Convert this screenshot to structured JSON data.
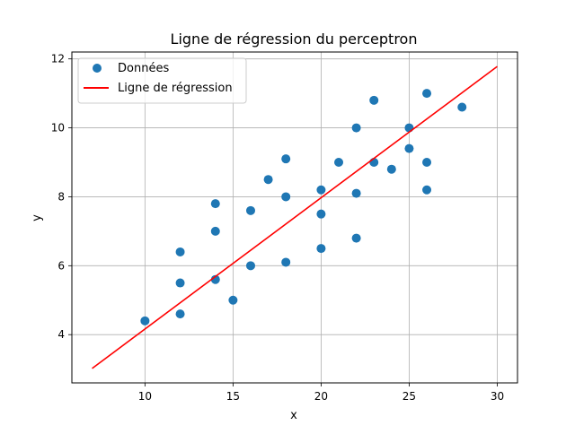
{
  "chart_data": {
    "type": "scatter",
    "title": "Ligne de régression du perceptron",
    "xlabel": "x",
    "ylabel": "y",
    "xlim": [
      5.85,
      31.15
    ],
    "ylim": [
      2.6,
      12.2
    ],
    "xticks": [
      10,
      15,
      20,
      25,
      30
    ],
    "yticks": [
      4,
      6,
      8,
      10,
      12
    ],
    "grid": true,
    "legend": {
      "placement": "top-left",
      "entries": [
        "Données",
        "Ligne de régression"
      ]
    },
    "series": [
      {
        "name": "Données",
        "kind": "scatter",
        "color": "#1f77b4",
        "points": [
          [
            10,
            4.4
          ],
          [
            12,
            4.6
          ],
          [
            12,
            5.5
          ],
          [
            12,
            6.4
          ],
          [
            14,
            5.6
          ],
          [
            14,
            7.0
          ],
          [
            14,
            7.8
          ],
          [
            15,
            5.0
          ],
          [
            16,
            6.0
          ],
          [
            16,
            7.6
          ],
          [
            17,
            8.5
          ],
          [
            18,
            6.1
          ],
          [
            18,
            8.0
          ],
          [
            18,
            9.1
          ],
          [
            20,
            6.5
          ],
          [
            20,
            7.5
          ],
          [
            20,
            8.2
          ],
          [
            21,
            9.0
          ],
          [
            22,
            6.8
          ],
          [
            22,
            8.1
          ],
          [
            22,
            10.0
          ],
          [
            23,
            9.0
          ],
          [
            23,
            10.8
          ],
          [
            24,
            8.8
          ],
          [
            25,
            9.4
          ],
          [
            25,
            10.0
          ],
          [
            26,
            8.2
          ],
          [
            26,
            9.0
          ],
          [
            26,
            11.0
          ],
          [
            28,
            10.6
          ]
        ]
      },
      {
        "name": "Ligne de régression",
        "kind": "line",
        "color": "#ff0000",
        "points": [
          [
            7,
            3.02
          ],
          [
            30,
            11.78
          ]
        ]
      }
    ]
  }
}
